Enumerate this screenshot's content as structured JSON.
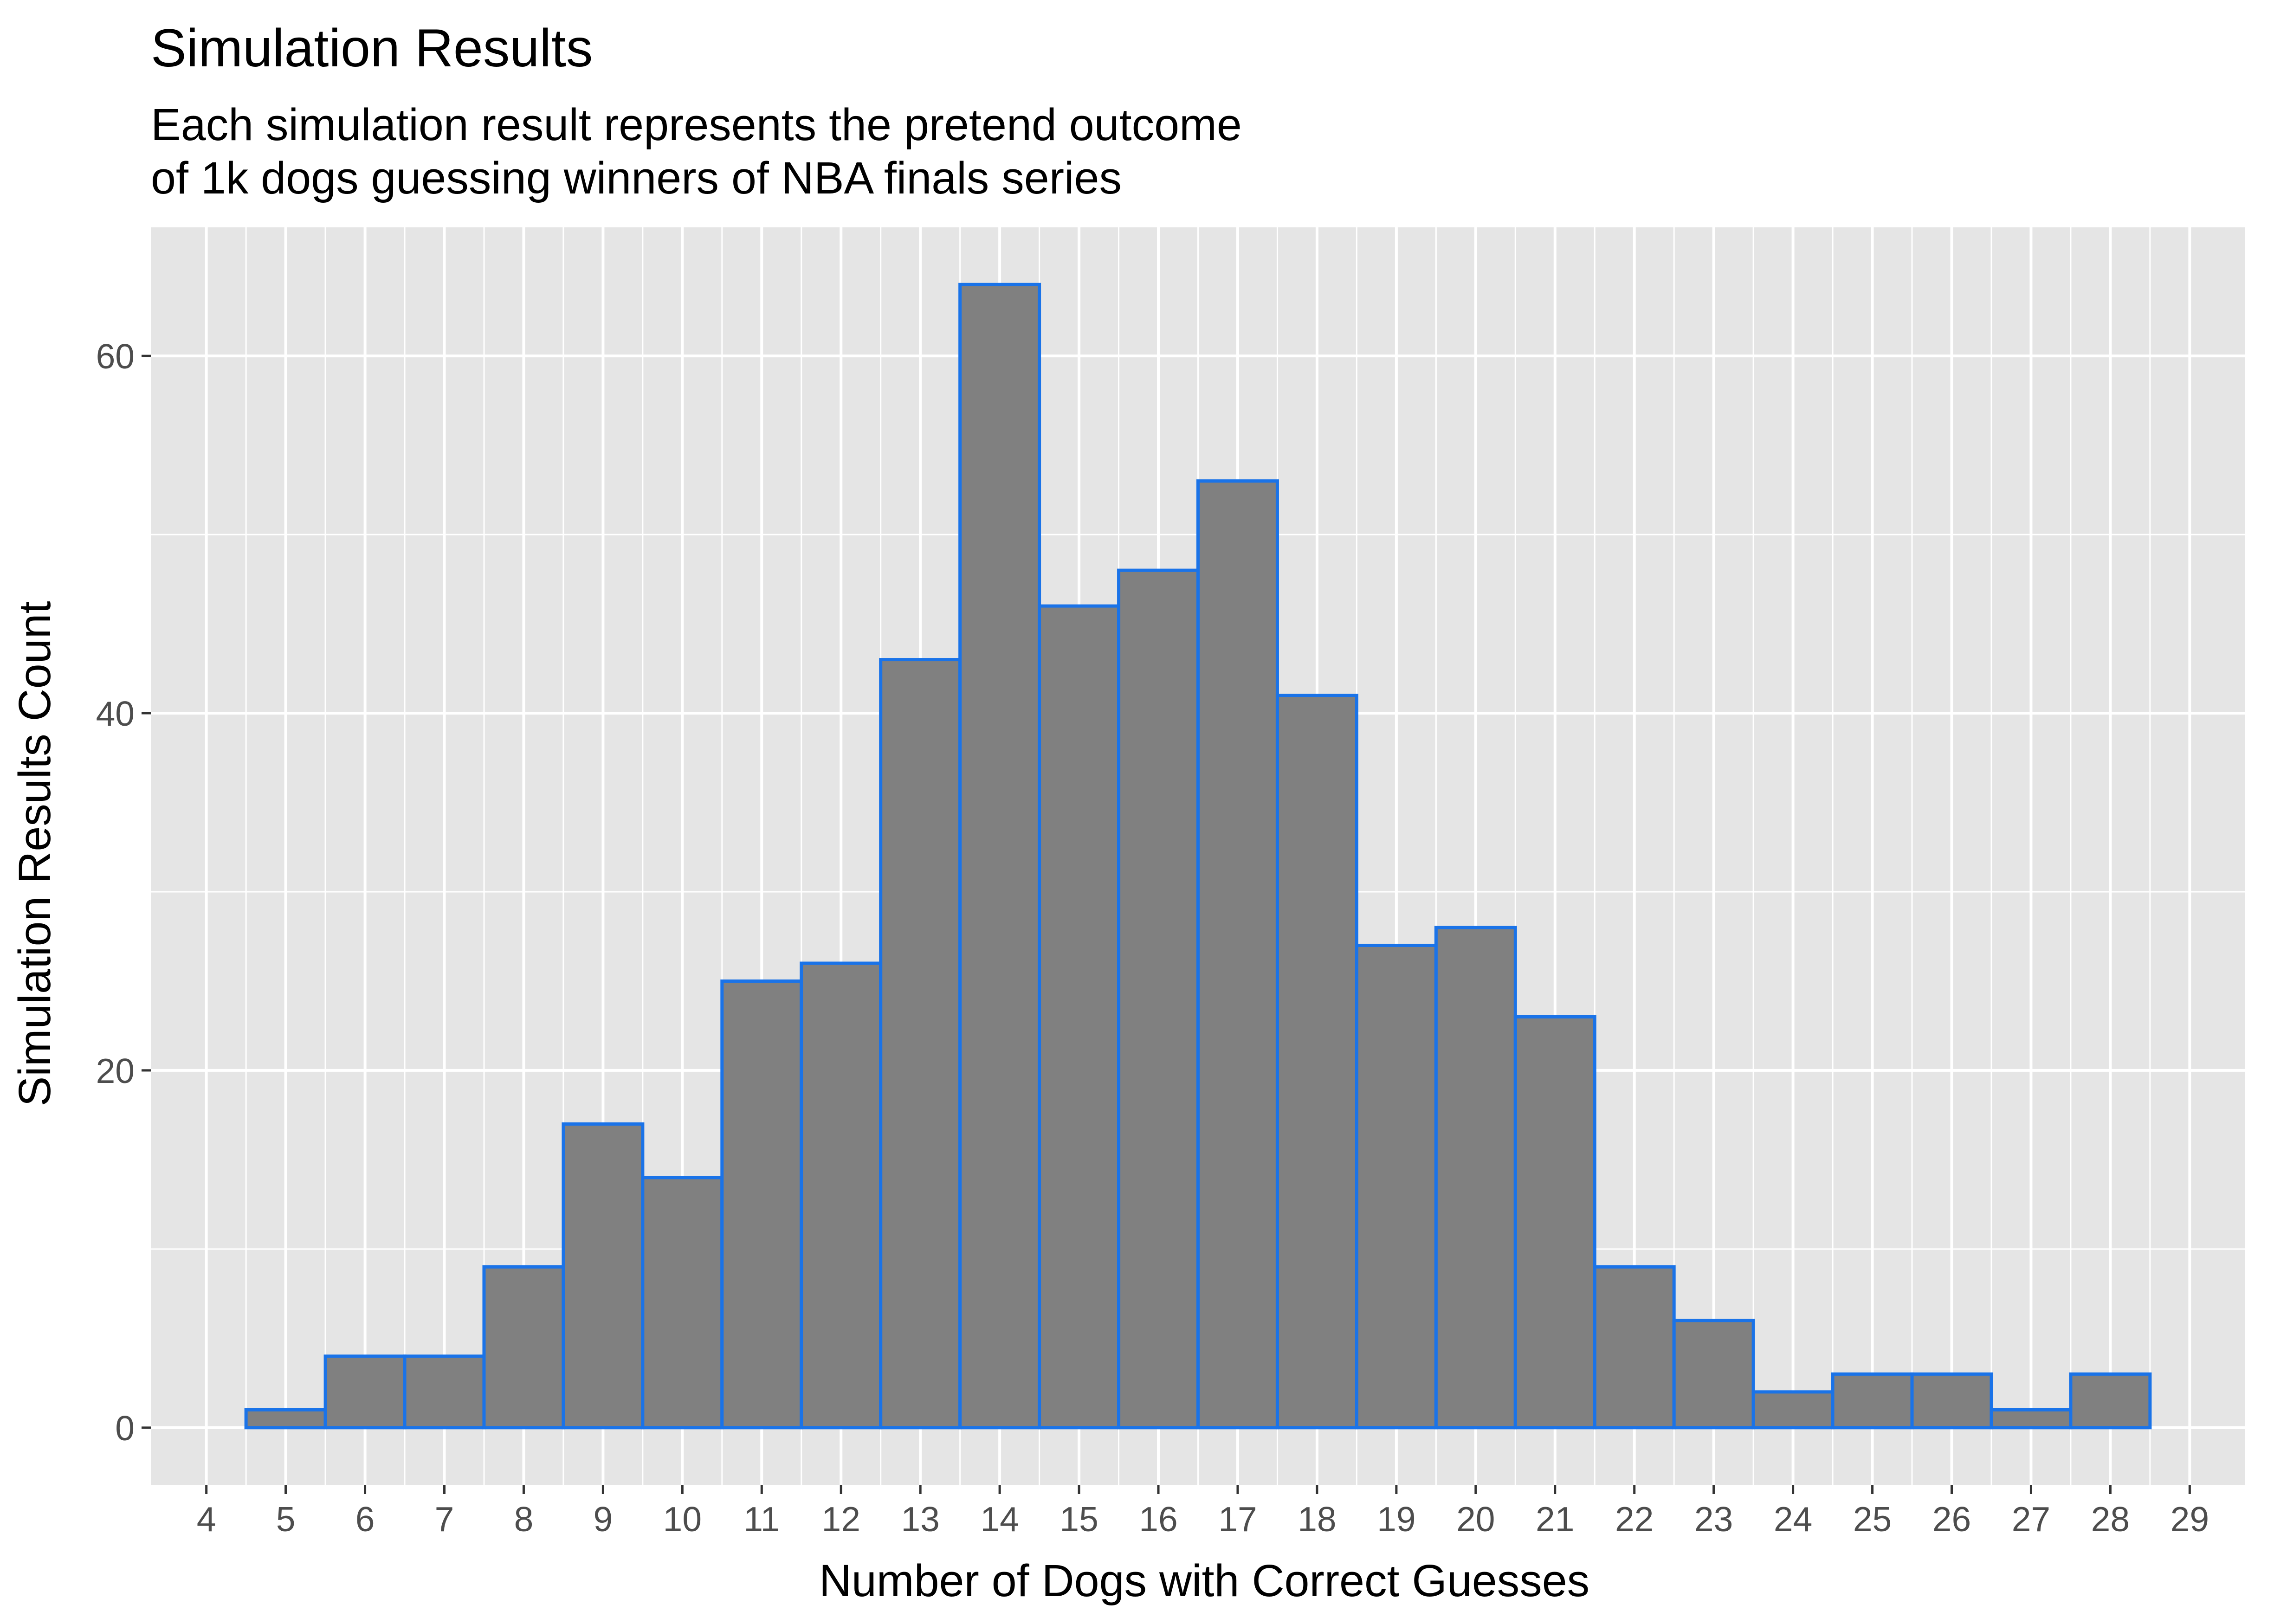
{
  "chart_data": {
    "type": "bar",
    "title": "Simulation Results",
    "subtitle": [
      "Each simulation result represents the pretend outcome",
      "of 1k dogs guessing winners of NBA finals series"
    ],
    "xlabel": "Number of Dogs with Correct Guesses",
    "ylabel": "Simulation Results Count",
    "x_ticks": [
      4,
      5,
      6,
      7,
      8,
      9,
      10,
      11,
      12,
      13,
      14,
      15,
      16,
      17,
      18,
      19,
      20,
      21,
      22,
      23,
      24,
      25,
      26,
      27,
      28,
      29
    ],
    "y_ticks": [
      0,
      20,
      40,
      60
    ],
    "xlim": [
      3.3,
      29.7
    ],
    "ylim": [
      -3.2,
      67.2
    ],
    "categories": [
      5,
      6,
      7,
      8,
      9,
      10,
      11,
      12,
      13,
      14,
      15,
      16,
      17,
      18,
      19,
      20,
      21,
      22,
      23,
      24,
      25,
      26,
      27,
      28
    ],
    "values": [
      1,
      4,
      4,
      9,
      17,
      14,
      25,
      26,
      43,
      64,
      46,
      48,
      53,
      41,
      27,
      28,
      23,
      9,
      6,
      2,
      3,
      3,
      1,
      3
    ],
    "grid": true,
    "colors": {
      "panel_background": "#e5e5e5",
      "gridline": "#ffffff",
      "bar_fill": "#808080",
      "bar_outline": "#1a73e8",
      "tick_text": "#4d4d4d",
      "tick_mark": "#333333"
    }
  }
}
